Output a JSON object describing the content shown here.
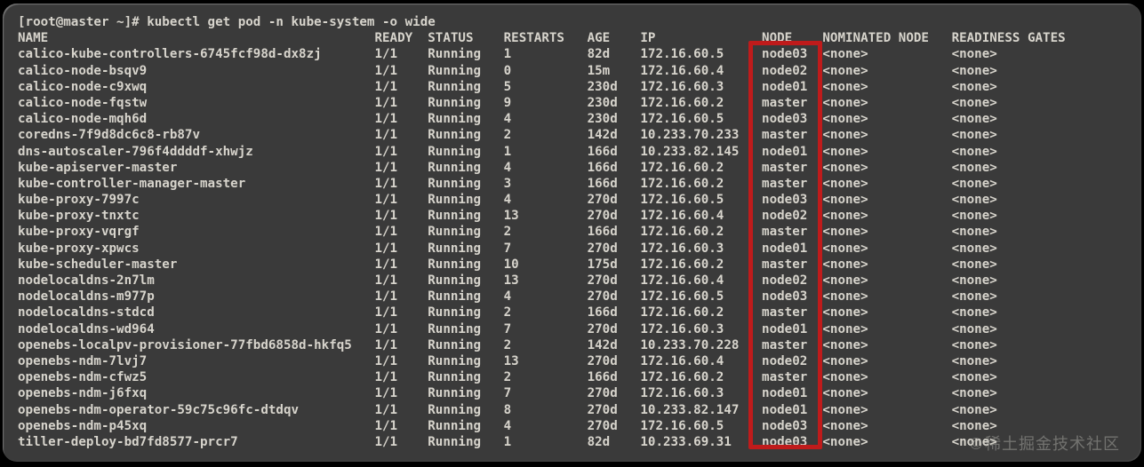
{
  "terminal": {
    "prompt": "[root@master ~]#",
    "command": "kubectl get pod -n kube-system -o wide"
  },
  "table": {
    "columns": [
      {
        "key": "name",
        "label": "NAME"
      },
      {
        "key": "ready",
        "label": "READY"
      },
      {
        "key": "status",
        "label": "STATUS"
      },
      {
        "key": "restarts",
        "label": "RESTARTS"
      },
      {
        "key": "age",
        "label": "AGE"
      },
      {
        "key": "ip",
        "label": "IP"
      },
      {
        "key": "node",
        "label": "NODE"
      },
      {
        "key": "nominated_node",
        "label": "NOMINATED NODE"
      },
      {
        "key": "readiness_gates",
        "label": "READINESS GATES"
      }
    ],
    "rows": [
      {
        "name": "calico-kube-controllers-6745fcf98d-dx8zj",
        "ready": "1/1",
        "status": "Running",
        "restarts": "1",
        "age": "82d",
        "ip": "172.16.60.5",
        "node": "node03",
        "nominated_node": "<none>",
        "readiness_gates": "<none>"
      },
      {
        "name": "calico-node-bsqv9",
        "ready": "1/1",
        "status": "Running",
        "restarts": "0",
        "age": "15m",
        "ip": "172.16.60.4",
        "node": "node02",
        "nominated_node": "<none>",
        "readiness_gates": "<none>"
      },
      {
        "name": "calico-node-c9xwq",
        "ready": "1/1",
        "status": "Running",
        "restarts": "5",
        "age": "230d",
        "ip": "172.16.60.3",
        "node": "node01",
        "nominated_node": "<none>",
        "readiness_gates": "<none>"
      },
      {
        "name": "calico-node-fqstw",
        "ready": "1/1",
        "status": "Running",
        "restarts": "9",
        "age": "230d",
        "ip": "172.16.60.2",
        "node": "master",
        "nominated_node": "<none>",
        "readiness_gates": "<none>"
      },
      {
        "name": "calico-node-mqh6d",
        "ready": "1/1",
        "status": "Running",
        "restarts": "4",
        "age": "230d",
        "ip": "172.16.60.5",
        "node": "node03",
        "nominated_node": "<none>",
        "readiness_gates": "<none>"
      },
      {
        "name": "coredns-7f9d8dc6c8-rb87v",
        "ready": "1/1",
        "status": "Running",
        "restarts": "2",
        "age": "142d",
        "ip": "10.233.70.233",
        "node": "master",
        "nominated_node": "<none>",
        "readiness_gates": "<none>"
      },
      {
        "name": "dns-autoscaler-796f4ddddf-xhwjz",
        "ready": "1/1",
        "status": "Running",
        "restarts": "1",
        "age": "166d",
        "ip": "10.233.82.145",
        "node": "node01",
        "nominated_node": "<none>",
        "readiness_gates": "<none>"
      },
      {
        "name": "kube-apiserver-master",
        "ready": "1/1",
        "status": "Running",
        "restarts": "4",
        "age": "166d",
        "ip": "172.16.60.2",
        "node": "master",
        "nominated_node": "<none>",
        "readiness_gates": "<none>"
      },
      {
        "name": "kube-controller-manager-master",
        "ready": "1/1",
        "status": "Running",
        "restarts": "3",
        "age": "166d",
        "ip": "172.16.60.2",
        "node": "master",
        "nominated_node": "<none>",
        "readiness_gates": "<none>"
      },
      {
        "name": "kube-proxy-7997c",
        "ready": "1/1",
        "status": "Running",
        "restarts": "4",
        "age": "270d",
        "ip": "172.16.60.5",
        "node": "node03",
        "nominated_node": "<none>",
        "readiness_gates": "<none>"
      },
      {
        "name": "kube-proxy-tnxtc",
        "ready": "1/1",
        "status": "Running",
        "restarts": "13",
        "age": "270d",
        "ip": "172.16.60.4",
        "node": "node02",
        "nominated_node": "<none>",
        "readiness_gates": "<none>"
      },
      {
        "name": "kube-proxy-vqrgf",
        "ready": "1/1",
        "status": "Running",
        "restarts": "2",
        "age": "166d",
        "ip": "172.16.60.2",
        "node": "master",
        "nominated_node": "<none>",
        "readiness_gates": "<none>"
      },
      {
        "name": "kube-proxy-xpwcs",
        "ready": "1/1",
        "status": "Running",
        "restarts": "7",
        "age": "270d",
        "ip": "172.16.60.3",
        "node": "node01",
        "nominated_node": "<none>",
        "readiness_gates": "<none>"
      },
      {
        "name": "kube-scheduler-master",
        "ready": "1/1",
        "status": "Running",
        "restarts": "10",
        "age": "175d",
        "ip": "172.16.60.2",
        "node": "master",
        "nominated_node": "<none>",
        "readiness_gates": "<none>"
      },
      {
        "name": "nodelocaldns-2n7lm",
        "ready": "1/1",
        "status": "Running",
        "restarts": "13",
        "age": "270d",
        "ip": "172.16.60.4",
        "node": "node02",
        "nominated_node": "<none>",
        "readiness_gates": "<none>"
      },
      {
        "name": "nodelocaldns-m977p",
        "ready": "1/1",
        "status": "Running",
        "restarts": "4",
        "age": "270d",
        "ip": "172.16.60.5",
        "node": "node03",
        "nominated_node": "<none>",
        "readiness_gates": "<none>"
      },
      {
        "name": "nodelocaldns-stdcd",
        "ready": "1/1",
        "status": "Running",
        "restarts": "2",
        "age": "166d",
        "ip": "172.16.60.2",
        "node": "master",
        "nominated_node": "<none>",
        "readiness_gates": "<none>"
      },
      {
        "name": "nodelocaldns-wd964",
        "ready": "1/1",
        "status": "Running",
        "restarts": "7",
        "age": "270d",
        "ip": "172.16.60.3",
        "node": "node01",
        "nominated_node": "<none>",
        "readiness_gates": "<none>"
      },
      {
        "name": "openebs-localpv-provisioner-77fbd6858d-hkfq5",
        "ready": "1/1",
        "status": "Running",
        "restarts": "2",
        "age": "142d",
        "ip": "10.233.70.228",
        "node": "master",
        "nominated_node": "<none>",
        "readiness_gates": "<none>"
      },
      {
        "name": "openebs-ndm-7lvj7",
        "ready": "1/1",
        "status": "Running",
        "restarts": "13",
        "age": "270d",
        "ip": "172.16.60.4",
        "node": "node02",
        "nominated_node": "<none>",
        "readiness_gates": "<none>"
      },
      {
        "name": "openebs-ndm-cfwz5",
        "ready": "1/1",
        "status": "Running",
        "restarts": "2",
        "age": "166d",
        "ip": "172.16.60.2",
        "node": "master",
        "nominated_node": "<none>",
        "readiness_gates": "<none>"
      },
      {
        "name": "openebs-ndm-j6fxq",
        "ready": "1/1",
        "status": "Running",
        "restarts": "7",
        "age": "270d",
        "ip": "172.16.60.3",
        "node": "node01",
        "nominated_node": "<none>",
        "readiness_gates": "<none>"
      },
      {
        "name": "openebs-ndm-operator-59c75c96fc-dtdqv",
        "ready": "1/1",
        "status": "Running",
        "restarts": "8",
        "age": "270d",
        "ip": "10.233.82.147",
        "node": "node01",
        "nominated_node": "<none>",
        "readiness_gates": "<none>"
      },
      {
        "name": "openebs-ndm-p45xq",
        "ready": "1/1",
        "status": "Running",
        "restarts": "4",
        "age": "270d",
        "ip": "172.16.60.5",
        "node": "node03",
        "nominated_node": "<none>",
        "readiness_gates": "<none>"
      },
      {
        "name": "tiller-deploy-bd7fd8577-prcr7",
        "ready": "1/1",
        "status": "Running",
        "restarts": "1",
        "age": "82d",
        "ip": "10.233.69.31",
        "node": "node03",
        "nominated_node": "<none>",
        "readiness_gates": "<none>"
      }
    ]
  },
  "highlight": {
    "highlighted_column": "NODE",
    "color": "#bf1b1b"
  },
  "colors": {
    "terminal_background": "#3a3a3a",
    "terminal_text": "#d7d4cc",
    "page_background": "#000000"
  },
  "watermark": "©稀土掘金技术社区"
}
